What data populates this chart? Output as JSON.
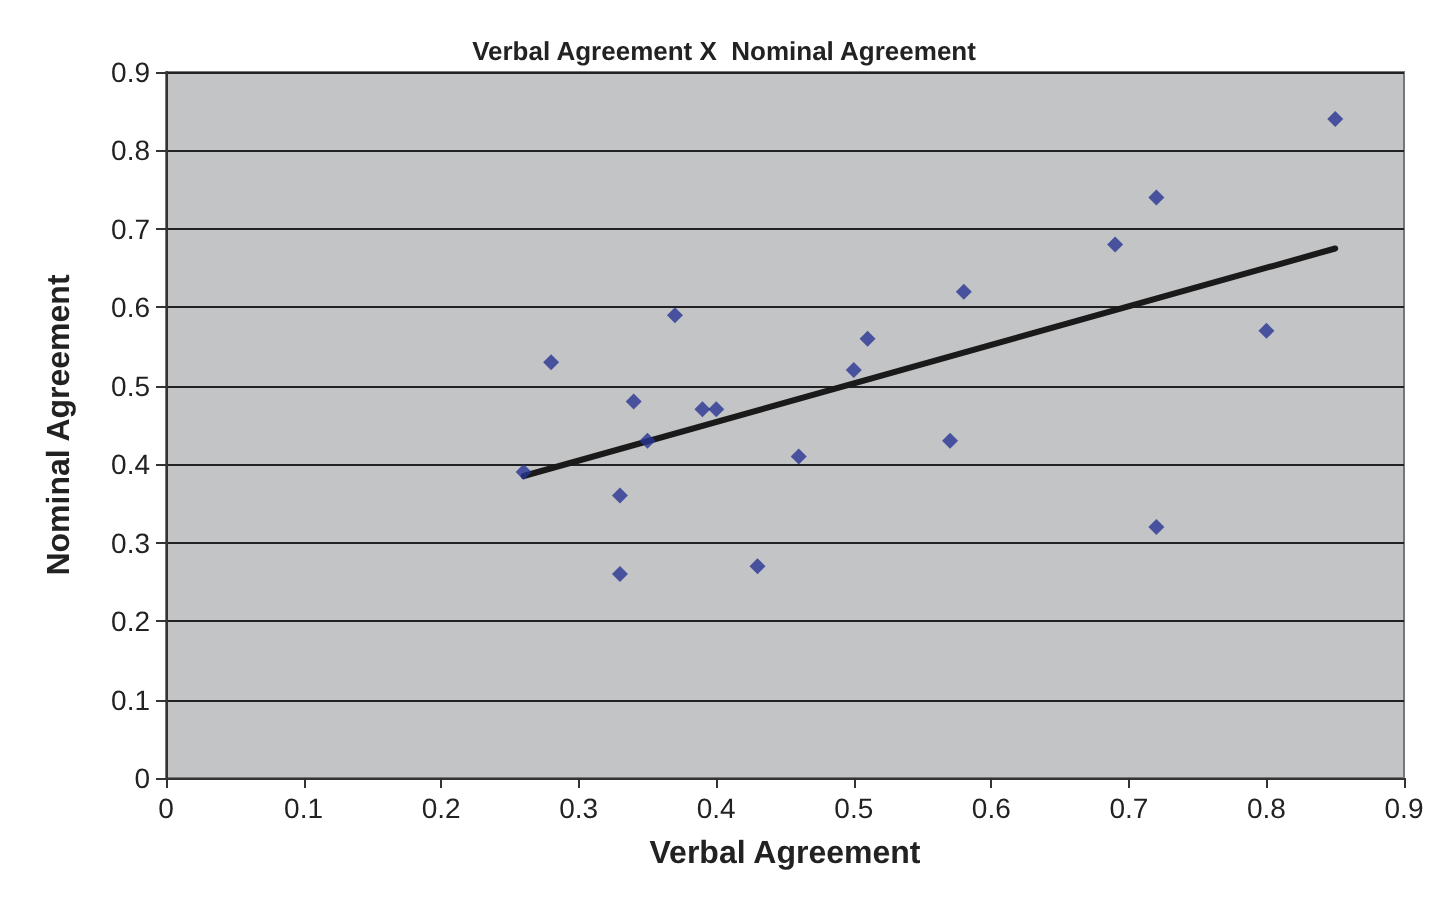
{
  "chart_data": {
    "type": "scatter",
    "title": "Verbal Agreement X  Nominal Agreement",
    "xlabel": "Verbal Agreement",
    "ylabel": "Nominal Agreement",
    "xlim": [
      0,
      0.9
    ],
    "xticks": [
      0,
      0.1,
      0.2,
      0.3,
      0.4,
      0.5,
      0.6,
      0.7,
      0.8,
      0.9
    ],
    "ylim": [
      0,
      0.9
    ],
    "yticks": [
      0,
      0.1,
      0.2,
      0.3,
      0.4,
      0.5,
      0.6,
      0.7,
      0.8,
      0.9
    ],
    "grid": "y",
    "series": [
      {
        "marker": "diamond",
        "color": "#283593",
        "x": [
          0.26,
          0.28,
          0.33,
          0.33,
          0.34,
          0.35,
          0.37,
          0.39,
          0.4,
          0.43,
          0.46,
          0.5,
          0.51,
          0.57,
          0.58,
          0.69,
          0.72,
          0.72,
          0.8,
          0.85
        ],
        "values": [
          0.39,
          0.53,
          0.36,
          0.26,
          0.48,
          0.43,
          0.59,
          0.47,
          0.47,
          0.27,
          0.41,
          0.52,
          0.56,
          0.43,
          0.62,
          0.68,
          0.74,
          0.32,
          0.57,
          0.84
        ]
      },
      {
        "type": "line",
        "color": "#1a1a1a",
        "x": [
          0.26,
          0.85
        ],
        "values": [
          0.385,
          0.675
        ],
        "line_style": "solid",
        "marker": "none"
      }
    ]
  }
}
